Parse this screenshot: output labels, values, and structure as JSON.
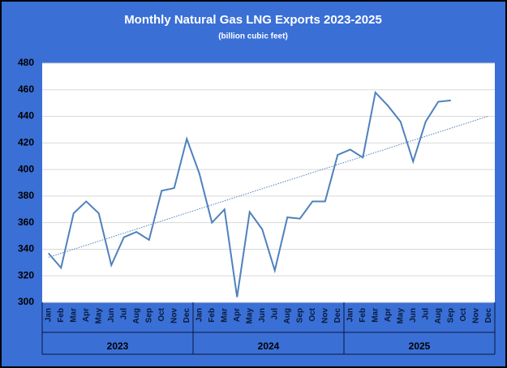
{
  "chart_data": {
    "type": "line",
    "title": "Monthly Natural Gas LNG Exports 2023-2025",
    "subtitle": "(billion cubic feet)",
    "categories": [
      "Jan",
      "Feb",
      "Mar",
      "Apr",
      "May",
      "Jun",
      "Jul",
      "Aug",
      "Sep",
      "Oct",
      "Nov",
      "Dec",
      "Jan",
      "Feb",
      "Mar",
      "Apr",
      "May",
      "Jun",
      "Jul",
      "Aug",
      "Sep",
      "Oct",
      "Nov",
      "Dec",
      "Jan",
      "Feb",
      "Mar",
      "Apr",
      "May",
      "Jun",
      "Jul",
      "Aug",
      "Sep",
      "Oct",
      "Nov",
      "Dec"
    ],
    "category_groups": [
      "2023",
      "2024",
      "2025"
    ],
    "series": [
      {
        "color": "#4f81bd",
        "values": [
          337,
          326,
          367,
          376,
          367,
          328,
          349,
          353,
          347,
          384,
          386,
          423,
          397,
          360,
          370,
          304,
          368,
          355,
          324,
          364,
          363,
          376,
          376,
          411,
          415,
          409,
          458,
          448,
          436,
          406,
          436,
          451,
          452,
          null,
          null,
          null
        ]
      }
    ],
    "trendline": true,
    "ylim": [
      300,
      480
    ],
    "yticks": [
      300,
      320,
      340,
      360,
      380,
      400,
      420,
      440,
      460,
      480
    ],
    "grid": true
  }
}
